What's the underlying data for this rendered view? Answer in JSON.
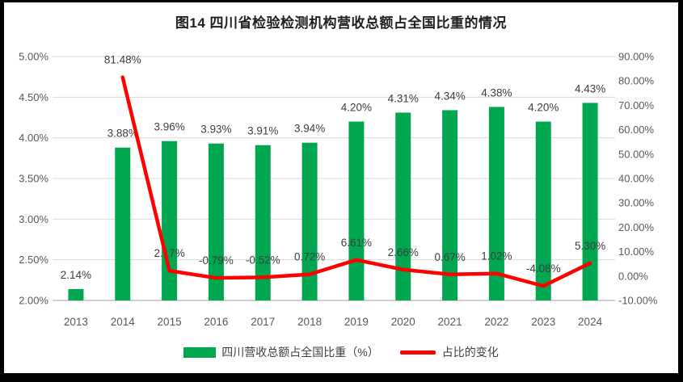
{
  "title": "图14  四川省检验检测机构营收总额占全国比重的情况",
  "chart_data": {
    "type": "combo",
    "categories": [
      "2013",
      "2014",
      "2015",
      "2016",
      "2017",
      "2018",
      "2019",
      "2020",
      "2021",
      "2022",
      "2023",
      "2024"
    ],
    "series": [
      {
        "name": "四川营收总额占全国比重（%）",
        "type": "bar",
        "axis": "left",
        "color": "#00A650",
        "values": [
          2.14,
          3.88,
          3.96,
          3.93,
          3.91,
          3.94,
          4.2,
          4.31,
          4.34,
          4.38,
          4.2,
          4.43
        ],
        "labels": [
          "2.14%",
          "3.88%",
          "3.96%",
          "3.93%",
          "3.91%",
          "3.94%",
          "4.20%",
          "4.31%",
          "4.34%",
          "4.38%",
          "4.20%",
          "4.43%"
        ]
      },
      {
        "name": "占比的变化",
        "type": "line",
        "axis": "right",
        "color": "#FF0000",
        "values": [
          null,
          81.48,
          2.17,
          -0.79,
          -0.52,
          0.72,
          6.61,
          2.66,
          0.67,
          1.02,
          -4.08,
          5.3
        ],
        "labels": [
          null,
          "81.48%",
          "2.17%",
          "-0.79%",
          "-0.52%",
          "0.72%",
          "6.61%",
          "2.66%",
          "0.67%",
          "1.02%",
          "-4.08%",
          "5.30%"
        ]
      }
    ],
    "left_axis": {
      "min": 2.0,
      "max": 5.0,
      "ticks": [
        {
          "value": 5.0,
          "label": "5.00%"
        },
        {
          "value": 4.5,
          "label": "4.50%"
        },
        {
          "value": 4.0,
          "label": "4.00%"
        },
        {
          "value": 3.5,
          "label": "3.50%"
        },
        {
          "value": 3.0,
          "label": "3.00%"
        },
        {
          "value": 2.5,
          "label": "2.50%"
        },
        {
          "value": 2.0,
          "label": "2.00%"
        }
      ]
    },
    "right_axis": {
      "min": -10,
      "max": 90,
      "ticks": [
        {
          "value": 90,
          "label": "90.00%"
        },
        {
          "value": 80,
          "label": "80.00%"
        },
        {
          "value": 70,
          "label": "70.00%"
        },
        {
          "value": 60,
          "label": "60.00%"
        },
        {
          "value": 50,
          "label": "50.00%"
        },
        {
          "value": 40,
          "label": "40.00%"
        },
        {
          "value": 30,
          "label": "30.00%"
        },
        {
          "value": 20,
          "label": "20.00%"
        },
        {
          "value": 10,
          "label": "10.00%"
        },
        {
          "value": 0,
          "label": "0.00%"
        },
        {
          "value": -10,
          "label": "-10.00%"
        }
      ]
    },
    "grid": true,
    "legend_position": "bottom"
  },
  "colors": {
    "background": "#FFFFFF",
    "frame": "#000000",
    "grid": "#D9D9D9",
    "axis_line": "#BFBFBF",
    "axis_text": "#595959",
    "label_text": "#3d3d3d",
    "bar": "#00A650",
    "line": "#FF0000"
  }
}
